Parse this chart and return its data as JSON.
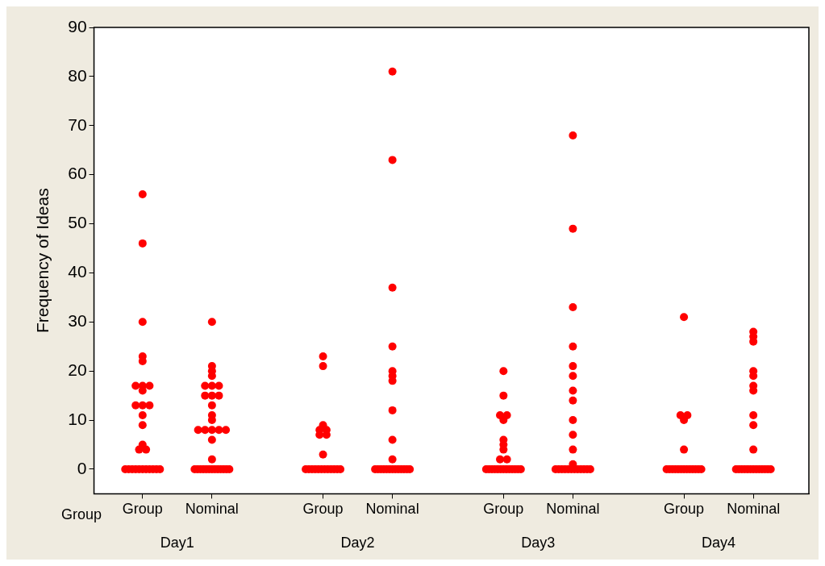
{
  "chart_data": {
    "type": "scatter",
    "ylabel": "Frequency of Ideas",
    "xlabel": "Group",
    "categories": [
      "Group",
      "Nominal",
      "Group",
      "Nominal",
      "Group",
      "Nominal",
      "Group",
      "Nominal"
    ],
    "annotations": [
      "Day1",
      "Day2",
      "Day3",
      "Day4"
    ],
    "ylim": [
      -5,
      90
    ],
    "yticks": [
      0,
      10,
      20,
      30,
      40,
      50,
      60,
      70,
      80,
      90
    ],
    "grid": false,
    "legend": false,
    "marker": "circle",
    "series": [
      {
        "color": "#ff0000",
        "values": [
          56,
          30,
          23,
          81,
          20,
          68,
          31,
          28
        ]
      },
      {
        "color": "#ff0000",
        "values": [
          46,
          21,
          21,
          63,
          15,
          49,
          11,
          27
        ]
      },
      {
        "color": "#ff0000",
        "values": [
          30,
          20,
          9,
          37,
          11,
          33,
          11,
          26
        ]
      },
      {
        "color": "#ff0000",
        "values": [
          23,
          19,
          8,
          25,
          11,
          25,
          10,
          20
        ]
      },
      {
        "color": "#ff0000",
        "values": [
          22,
          17,
          8,
          20,
          10,
          21,
          4,
          19
        ]
      },
      {
        "color": "#ff0000",
        "values": [
          17,
          17,
          7,
          19,
          6,
          19,
          0,
          17
        ]
      },
      {
        "color": "#ff0000",
        "values": [
          17,
          17,
          7,
          18,
          5,
          16,
          0,
          16
        ]
      },
      {
        "color": "#ff0000",
        "values": [
          17,
          15,
          3,
          12,
          4,
          14,
          0,
          11
        ]
      },
      {
        "color": "#ff0000",
        "values": [
          16,
          15,
          0,
          6,
          2,
          10,
          0,
          9
        ]
      },
      {
        "color": "#ff0000",
        "values": [
          13,
          15,
          0,
          2,
          2,
          7,
          0,
          4
        ]
      },
      {
        "color": "#ff0000",
        "values": [
          13,
          13,
          0,
          0,
          0,
          4,
          0,
          0
        ]
      },
      {
        "color": "#ff0000",
        "values": [
          13,
          11,
          0,
          0,
          0,
          1,
          0,
          0
        ]
      },
      {
        "color": "#ff0000",
        "values": [
          11,
          10,
          0,
          0,
          0,
          0,
          0,
          0
        ]
      },
      {
        "color": "#ff0000",
        "values": [
          9,
          8,
          0,
          0,
          0,
          0,
          0,
          0
        ]
      },
      {
        "color": "#ff0000",
        "values": [
          5,
          8,
          0,
          0,
          0,
          0,
          0,
          0
        ]
      },
      {
        "color": "#ff0000",
        "values": [
          4,
          8,
          0,
          0,
          0,
          0,
          0,
          0
        ]
      },
      {
        "color": "#ff0000",
        "values": [
          4,
          8,
          0,
          0,
          0,
          0,
          0,
          0
        ]
      },
      {
        "color": "#ff0000",
        "values": [
          0,
          8,
          0,
          0,
          0,
          0,
          0,
          0
        ]
      },
      {
        "color": "#ff0000",
        "values": [
          0,
          6,
          0,
          0,
          0,
          0,
          null,
          0
        ]
      },
      {
        "color": "#ff0000",
        "values": [
          0,
          2,
          0,
          0,
          0,
          0,
          null,
          0
        ]
      },
      {
        "color": "#ff0000",
        "values": [
          0,
          0,
          null,
          0,
          0,
          0,
          null,
          0
        ]
      },
      {
        "color": "#ff0000",
        "values": [
          0,
          0,
          null,
          0,
          0,
          0,
          null,
          0
        ]
      },
      {
        "color": "#ff0000",
        "values": [
          0,
          0,
          null,
          0,
          0,
          0,
          null,
          0
        ]
      },
      {
        "color": "#ff0000",
        "values": [
          0,
          0,
          null,
          null,
          null,
          0,
          null,
          null
        ]
      },
      {
        "color": "#ff0000",
        "values": [
          0,
          0,
          null,
          null,
          null,
          null,
          null,
          null
        ]
      },
      {
        "color": "#ff0000",
        "values": [
          0,
          0,
          null,
          null,
          null,
          null,
          null,
          null
        ]
      },
      {
        "color": "#ff0000",
        "values": [
          0,
          0,
          null,
          null,
          null,
          null,
          null,
          null
        ]
      },
      {
        "color": "#ff0000",
        "values": [
          0,
          0,
          null,
          null,
          null,
          null,
          null,
          null
        ]
      },
      {
        "color": "#ff0000",
        "values": [
          null,
          0,
          null,
          null,
          null,
          null,
          null,
          null
        ]
      },
      {
        "color": "#ff0000",
        "values": [
          null,
          0,
          null,
          null,
          null,
          null,
          null,
          null
        ]
      },
      {
        "color": "#ff0000",
        "values": [
          null,
          0,
          null,
          null,
          null,
          null,
          null,
          null
        ]
      },
      {
        "color": "#ff0000",
        "values": [
          null,
          0,
          null,
          null,
          null,
          null,
          null,
          null
        ]
      },
      {
        "color": "#ff0000",
        "values": [
          null,
          0,
          null,
          null,
          null,
          null,
          null,
          null
        ]
      }
    ]
  }
}
